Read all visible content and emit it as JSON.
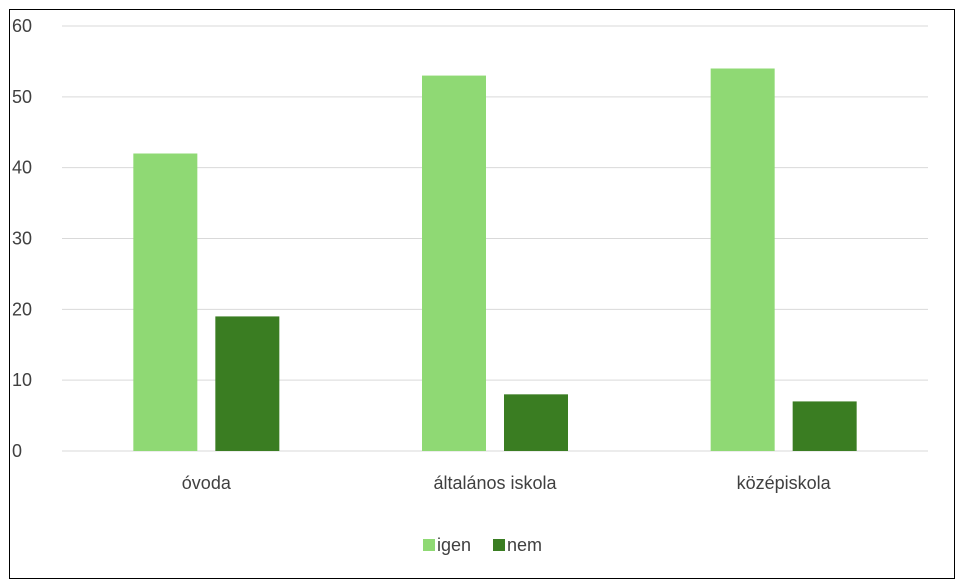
{
  "chart_data": {
    "type": "bar",
    "categories": [
      "óvoda",
      "általános iskola",
      "középiskola"
    ],
    "series": [
      {
        "name": "igen",
        "values": [
          42,
          53,
          54
        ],
        "color": "#8fd974"
      },
      {
        "name": "nem",
        "values": [
          19,
          8,
          7
        ],
        "color": "#3a7d22"
      }
    ],
    "title": "",
    "xlabel": "",
    "ylabel": "",
    "ylim": [
      0,
      60
    ],
    "yticks": [
      0,
      10,
      20,
      30,
      40,
      50,
      60
    ],
    "grid": true,
    "gridColor": "#d9d9d9",
    "legend": "bottom"
  }
}
